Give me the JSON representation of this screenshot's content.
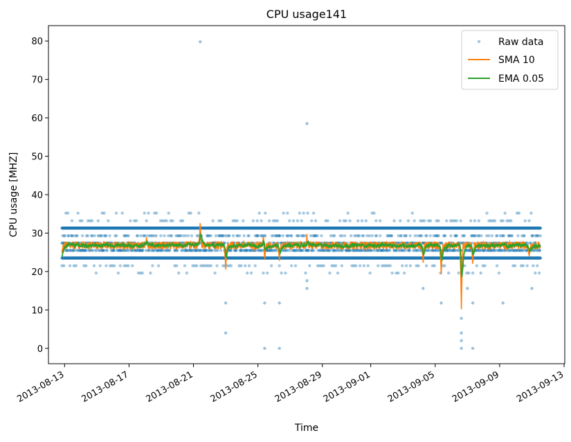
{
  "chart_data": {
    "type": "line",
    "title": "CPU usage141",
    "xlabel": "Time",
    "ylabel": "CPU usage [MHZ]",
    "x_range": [
      "2013-08-12T00:00",
      "2013-09-13T01:00"
    ],
    "ylim": [
      -4,
      84
    ],
    "x_ticks": [
      "2013-08-13",
      "2013-08-17",
      "2013-08-21",
      "2013-08-25",
      "2013-08-29",
      "2013-09-01",
      "2013-09-05",
      "2013-09-09",
      "2013-09-13"
    ],
    "y_ticks": [
      0,
      10,
      20,
      30,
      40,
      50,
      60,
      70,
      80
    ],
    "grid": false,
    "legend_position": "upper-right",
    "data_start": "2013-08-12T20:00",
    "data_end": "2013-09-11T13:00",
    "raw_levels": [
      23.5,
      25.5,
      27.4,
      29.3,
      31.3
    ],
    "raw_outliers": [
      {
        "x": "2013-08-21T10:00",
        "y": 79.8
      },
      {
        "x": "2013-08-28T01:00",
        "y": 58.5
      },
      {
        "x": "2013-08-23T00:00",
        "y": 11.8
      },
      {
        "x": "2013-08-23T00:00",
        "y": 4.0
      },
      {
        "x": "2013-08-25T10:00",
        "y": 11.8
      },
      {
        "x": "2013-08-25T10:00",
        "y": 0.0
      },
      {
        "x": "2013-08-26T08:00",
        "y": 11.8
      },
      {
        "x": "2013-08-26T08:00",
        "y": 0.0
      },
      {
        "x": "2013-08-28T01:00",
        "y": 15.6
      },
      {
        "x": "2013-08-28T01:00",
        "y": 17.6
      },
      {
        "x": "2013-09-04T06:00",
        "y": 15.6
      },
      {
        "x": "2013-09-05T09:00",
        "y": 11.8
      },
      {
        "x": "2013-09-06T15:00",
        "y": 0.0
      },
      {
        "x": "2013-09-06T15:00",
        "y": 2.0
      },
      {
        "x": "2013-09-06T15:00",
        "y": 4.0
      },
      {
        "x": "2013-09-06T15:00",
        "y": 7.8
      },
      {
        "x": "2013-09-07T08:00",
        "y": 0.0
      },
      {
        "x": "2013-09-07T08:00",
        "y": 11.8
      },
      {
        "x": "2013-09-07T00:00",
        "y": 15.6
      },
      {
        "x": "2013-09-09T05:00",
        "y": 11.8
      },
      {
        "x": "2013-09-11T00:00",
        "y": 15.6
      }
    ],
    "sma_dips": [
      {
        "x": "2013-08-23T00:00",
        "y": 20.5
      },
      {
        "x": "2013-08-25T10:00",
        "y": 22.5
      },
      {
        "x": "2013-08-26T08:00",
        "y": 22.8
      },
      {
        "x": "2013-08-28T01:00",
        "y": 23.0
      },
      {
        "x": "2013-09-04T06:00",
        "y": 22.3
      },
      {
        "x": "2013-09-05T09:00",
        "y": 19.3
      },
      {
        "x": "2013-09-06T15:00",
        "y": 10.2
      },
      {
        "x": "2013-09-07T08:00",
        "y": 22.0
      },
      {
        "x": "2013-09-10T20:00",
        "y": 24.0
      }
    ],
    "sma_spikes": [
      {
        "x": "2013-08-21T10:00",
        "y": 32.6
      },
      {
        "x": "2013-08-28T01:00",
        "y": 29.8
      },
      {
        "x": "2013-08-25T08:00",
        "y": 29.0
      },
      {
        "x": "2013-08-18T02:00",
        "y": 28.9
      }
    ],
    "series": [
      {
        "name": "Raw data",
        "color": "#1f77b4",
        "style": "markers"
      },
      {
        "name": "SMA 10",
        "color": "#ff7f0e",
        "style": "line",
        "baseline": 26.8
      },
      {
        "name": "EMA 0.05",
        "color": "#2ca02c",
        "style": "line",
        "baseline": 26.8
      }
    ]
  }
}
